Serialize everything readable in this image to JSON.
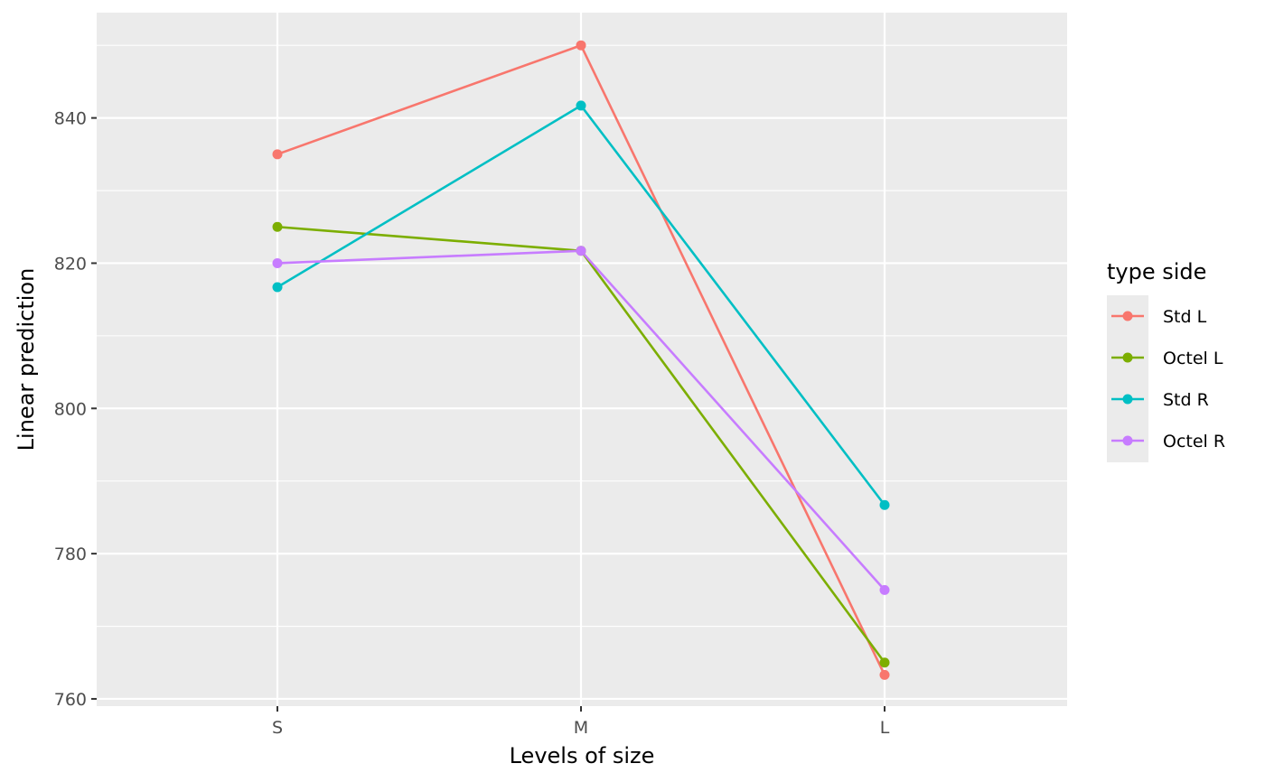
{
  "chart_data": {
    "type": "line",
    "xlabel": "Levels of size",
    "ylabel": "Linear prediction",
    "categories": [
      "S",
      "M",
      "L"
    ],
    "ylim": [
      759,
      854.5
    ],
    "yticks": [
      760,
      780,
      800,
      820,
      840
    ],
    "grid": true,
    "legend_title": "type side",
    "legend_position": "right",
    "series": [
      {
        "name": "Std L",
        "color": "#F8766D",
        "values": [
          835,
          850,
          763.3
        ]
      },
      {
        "name": "Octel L",
        "color": "#7CAE00",
        "values": [
          825,
          821.7,
          765
        ]
      },
      {
        "name": "Std R",
        "color": "#00BFC4",
        "values": [
          816.7,
          841.7,
          786.7
        ]
      },
      {
        "name": "Octel R",
        "color": "#C77CFF",
        "values": [
          820,
          821.7,
          775
        ]
      }
    ]
  }
}
